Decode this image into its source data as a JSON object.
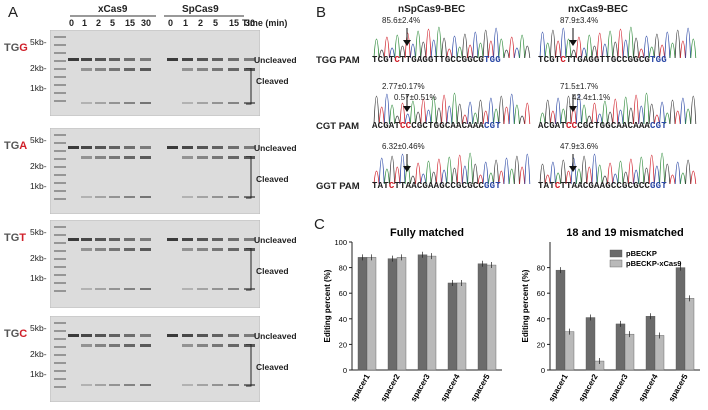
{
  "panel_a": {
    "letter": "A",
    "enzymes": [
      "xCas9",
      "SpCas9"
    ],
    "time_labels": [
      "0",
      "1",
      "2",
      "5",
      "15",
      "30",
      "0",
      "1",
      "2",
      "5",
      "15",
      "30"
    ],
    "time_unit": "Time (min)",
    "gels": [
      {
        "pam_prefix": "T",
        "pam_g": "G",
        "pam_last": "G",
        "ladder": [
          "5kb-",
          "2kb-",
          "1kb-"
        ],
        "uncleaved": "Uncleaved",
        "cleaved": "Cleaved"
      },
      {
        "pam_prefix": "T",
        "pam_g": "G",
        "pam_last": "A",
        "ladder": [
          "5kb-",
          "2kb-",
          "1kb-"
        ],
        "uncleaved": "Uncleaved",
        "cleaved": "Cleaved"
      },
      {
        "pam_prefix": "T",
        "pam_g": "G",
        "pam_last": "T",
        "ladder": [
          "5kb-",
          "2kb-",
          "1kb-"
        ],
        "uncleaved": "Uncleaved",
        "cleaved": "Cleaved"
      },
      {
        "pam_prefix": "T",
        "pam_g": "G",
        "pam_last": "C",
        "ladder": [
          "5kb-",
          "2kb-",
          "1kb-"
        ],
        "uncleaved": "Uncleaved",
        "cleaved": "Cleaved"
      }
    ]
  },
  "panel_b": {
    "letter": "B",
    "col_titles": [
      "nSpCas9-BEC",
      "nxCas9-BEC"
    ],
    "rows": [
      {
        "pam": "TGG PAM",
        "seq_pre": "TCGT",
        "seq_c": "C",
        "seq_mid": "TTGAGGTTGCCGGCG",
        "seq_pam": "TGG",
        "left_annot": [
          "85.6±2.4%"
        ],
        "right_annot": [
          "87.9±3.4%"
        ]
      },
      {
        "pam": "CGT PAM",
        "seq_pre": "ACGAT",
        "seq_c": "CC",
        "seq_mid": "CGCTGGCAACAAA",
        "seq_pam": "CGT",
        "left_annot": [
          "2.77±0.17%",
          "0.57±0.51%"
        ],
        "right_annot": [
          "71.5±1.7%",
          "42.4±1.1%"
        ]
      },
      {
        "pam": "GGT PAM",
        "seq_pre": "TAT",
        "seq_c": "C",
        "seq_mid": "TTAACGAAGCCGCGCC",
        "seq_pam": "GGT",
        "left_annot": [
          "6.32±0.46%"
        ],
        "right_annot": [
          "47.9±3.6%"
        ]
      }
    ]
  },
  "panel_c": {
    "letter": "C",
    "colors": {
      "dark": "#6b6b6b",
      "light": "#b9b9b9",
      "red": "#d0202a",
      "blue": "#2c49a6"
    }
  },
  "chart_data": [
    {
      "type": "bar",
      "title": "Fully matched",
      "ylabel": "Editing percent (%)",
      "ylim": [
        0,
        100
      ],
      "yticks": [
        0,
        20,
        40,
        60,
        80,
        100
      ],
      "categories": [
        "spacer1",
        "spacer2",
        "spacer3",
        "spacer4",
        "spacer5"
      ],
      "series": [
        {
          "values": [
            88,
            87,
            90,
            68,
            83
          ]
        },
        {
          "values": [
            88,
            88,
            89,
            68,
            82
          ]
        }
      ]
    },
    {
      "type": "bar",
      "title": "18 and 19 mismatched",
      "ylabel": "Editing percent (%)",
      "ylim": [
        0,
        100
      ],
      "yticks": [
        0,
        20,
        40,
        60,
        80
      ],
      "categories": [
        "spacer1",
        "spacer2",
        "spacer3",
        "spacer4",
        "spacer5"
      ],
      "legend": "top-right",
      "series": [
        {
          "name": "pBECKP",
          "values": [
            78,
            41,
            36,
            42,
            80
          ]
        },
        {
          "name": "pBECKP-xCas9",
          "values": [
            30,
            7,
            28,
            27,
            56
          ]
        }
      ]
    }
  ]
}
